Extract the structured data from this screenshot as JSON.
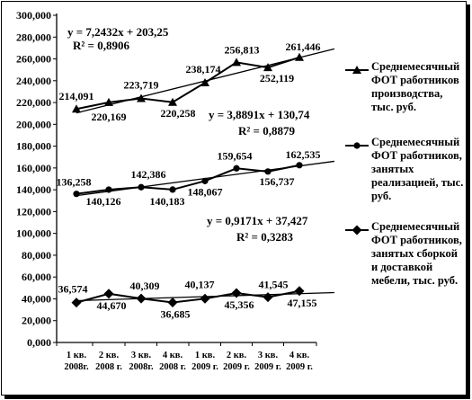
{
  "chart_data": {
    "type": "line",
    "categories": [
      [
        "1 кв.",
        "2008г."
      ],
      [
        "2 кв.",
        "2008 г."
      ],
      [
        "3 кв.",
        "2008г."
      ],
      [
        "4 кв.",
        "2008 г."
      ],
      [
        "1 кв.",
        "2009 г."
      ],
      [
        "2 кв.",
        "2009 г."
      ],
      [
        "3 кв.",
        "2009 г."
      ],
      [
        "4 кв.",
        "2009 г."
      ]
    ],
    "ylim": [
      0,
      300
    ],
    "yticks": [
      "0,000",
      "20,000",
      "40,000",
      "60,000",
      "80,000",
      "100,000",
      "120,000",
      "140,000",
      "160,000",
      "180,000",
      "200,000",
      "220,000",
      "240,000",
      "260,000",
      "280,000",
      "300,000"
    ],
    "grid": false,
    "series": [
      {
        "name": [
          "Среднемесячный",
          "ФОТ работников",
          "производства,",
          "тыс. руб."
        ],
        "marker": "triangle",
        "values": [
          214.091,
          220.169,
          223.719,
          220.258,
          238.174,
          256.813,
          252.119,
          261.446
        ],
        "labels": [
          "214,091",
          "220,169",
          "223,719",
          "220,258",
          "238,174",
          "256,813",
          "252,119",
          "261,446"
        ],
        "trend": {
          "slope": 7.2432,
          "intercept": 203.25,
          "equation": "y = 7,2432x + 203,25",
          "r2": "R² = 0,8906"
        }
      },
      {
        "name": [
          "Среднемесячный",
          "ФОТ работников,",
          "занятых",
          "реализацией, тыс.",
          "руб."
        ],
        "marker": "circle",
        "values": [
          136.258,
          140.126,
          142.386,
          140.183,
          148.067,
          159.654,
          156.737,
          162.535
        ],
        "labels": [
          "136,258",
          "140,126",
          "142,386",
          "140,183",
          "148,067",
          "159,654",
          "156,737",
          "162,535"
        ],
        "trend": {
          "slope": 3.8891,
          "intercept": 130.74,
          "equation": "y = 3,8891x + 130,74",
          "r2": "R² = 0,8879"
        }
      },
      {
        "name": [
          "Среднемесячный",
          "ФОТ работников,",
          "занятых сборкой",
          "и доставкой",
          "мебели, тыс. руб."
        ],
        "marker": "diamond",
        "values": [
          36.574,
          44.67,
          40.309,
          36.685,
          40.137,
          45.356,
          41.545,
          47.155
        ],
        "labels": [
          "36,574",
          "44,670",
          "40,309",
          "36,685",
          "40,137",
          "45,356",
          "41,545",
          "47,155"
        ],
        "trend": {
          "slope": 0.9171,
          "intercept": 37.427,
          "equation": "y = 0,9171x + 37,427",
          "r2": "R² = 0,3283"
        }
      }
    ],
    "legend": "right"
  }
}
